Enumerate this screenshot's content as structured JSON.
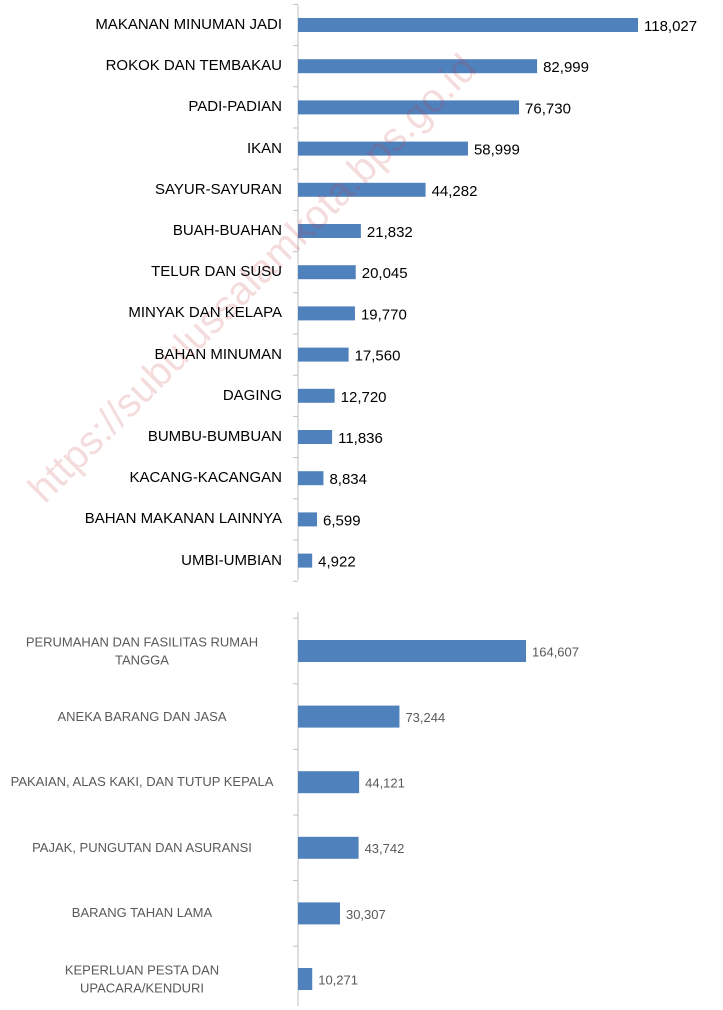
{
  "chart_data": [
    {
      "type": "bar",
      "orientation": "horizontal",
      "color": "#4f81bd",
      "categories": [
        "MAKANAN MINUMAN JADI",
        "ROKOK DAN TEMBAKAU",
        "PADI-PADIAN",
        "IKAN",
        "SAYUR-SAYURAN",
        "BUAH-BUAHAN",
        "TELUR DAN SUSU",
        "MINYAK DAN KELAPA",
        "BAHAN MINUMAN",
        "DAGING",
        "BUMBU-BUMBUAN",
        "KACANG-KACANGAN",
        "BAHAN MAKANAN LAINNYA",
        "UMBI-UMBIAN"
      ],
      "values": [
        118027,
        82999,
        76730,
        58999,
        44282,
        21832,
        20045,
        19770,
        17560,
        12720,
        11836,
        8834,
        6599,
        4922
      ],
      "value_labels": [
        "118,027",
        "82,999",
        "76,730",
        "58,999",
        "44,282",
        "21,832",
        "20,045",
        "19,770",
        "17,560",
        "12,720",
        "11,836",
        "8,834",
        "6,599",
        "4,922"
      ]
    },
    {
      "type": "bar",
      "orientation": "horizontal",
      "color": "#4f81bd",
      "categories": [
        "PERUMAHAN  DAN FASILITAS RUMAH TANGGA",
        "ANEKA BARANG DAN JASA",
        "PAKAIAN, ALAS KAKI, DAN TUTUP KEPALA",
        "PAJAK, PUNGUTAN DAN ASURANSI",
        "BARANG TAHAN LAMA",
        "KEPERLUAN PESTA DAN UPACARA/KENDURI"
      ],
      "values": [
        164607,
        73244,
        44121,
        43742,
        30307,
        10271
      ],
      "value_labels": [
        "164,607",
        "73,244",
        "44,121",
        "43,742",
        "30,307",
        "10,271"
      ]
    }
  ],
  "watermark": "https://subulussalamkota.bps.go.id"
}
